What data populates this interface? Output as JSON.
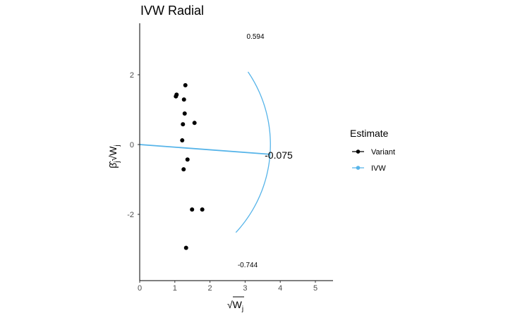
{
  "chart_data": {
    "type": "scatter",
    "title": "IVW Radial",
    "xlabel": "√W",
    "xlabel_sub": "j",
    "ylabel": "β̂",
    "ylabel_sub": "j",
    "ylabel_sqrt": "√W",
    "ylabel_sqrt_sub": "j",
    "xlim": [
      0,
      5.5
    ],
    "ylim": [
      -3.9,
      3.45
    ],
    "x_ticks": [
      0,
      1,
      2,
      3,
      4,
      5
    ],
    "x_tick_labels": [
      "0",
      "1",
      "2",
      "3",
      "4",
      "5"
    ],
    "y_ticks": [
      2,
      0,
      -2
    ],
    "y_tick_labels": [
      "2",
      "0",
      "-2"
    ],
    "grid": false,
    "legend_position": "right",
    "legend": {
      "title": "Estimate",
      "entries": [
        {
          "label": "Variant",
          "color": "#000000"
        },
        {
          "label": "IVW",
          "color": "#56B4E9"
        }
      ]
    },
    "series": [
      {
        "name": "Variant",
        "color": "#000000",
        "points": [
          {
            "x": 1.3,
            "y": 1.7
          },
          {
            "x": 1.05,
            "y": 1.43
          },
          {
            "x": 1.03,
            "y": 1.38
          },
          {
            "x": 1.26,
            "y": 1.29
          },
          {
            "x": 1.28,
            "y": 0.89
          },
          {
            "x": 1.23,
            "y": 0.58
          },
          {
            "x": 1.56,
            "y": 0.62
          },
          {
            "x": 1.21,
            "y": 0.12
          },
          {
            "x": 1.36,
            "y": -0.43
          },
          {
            "x": 1.25,
            "y": -0.71
          },
          {
            "x": 1.49,
            "y": -1.86
          },
          {
            "x": 1.78,
            "y": -1.86
          },
          {
            "x": 1.32,
            "y": -2.96
          }
        ]
      },
      {
        "name": "IVW",
        "color": "#56B4E9",
        "line": {
          "intercept": 0,
          "slope": -0.075,
          "x_end": 3.72
        }
      }
    ],
    "arc": {
      "radius": 3.72,
      "theta_min": -0.744,
      "theta_max": 0.594,
      "color": "#56B4E9"
    },
    "annotations": {
      "upper": "0.594",
      "lower": "-0.744",
      "estimate": "-0.075"
    }
  }
}
